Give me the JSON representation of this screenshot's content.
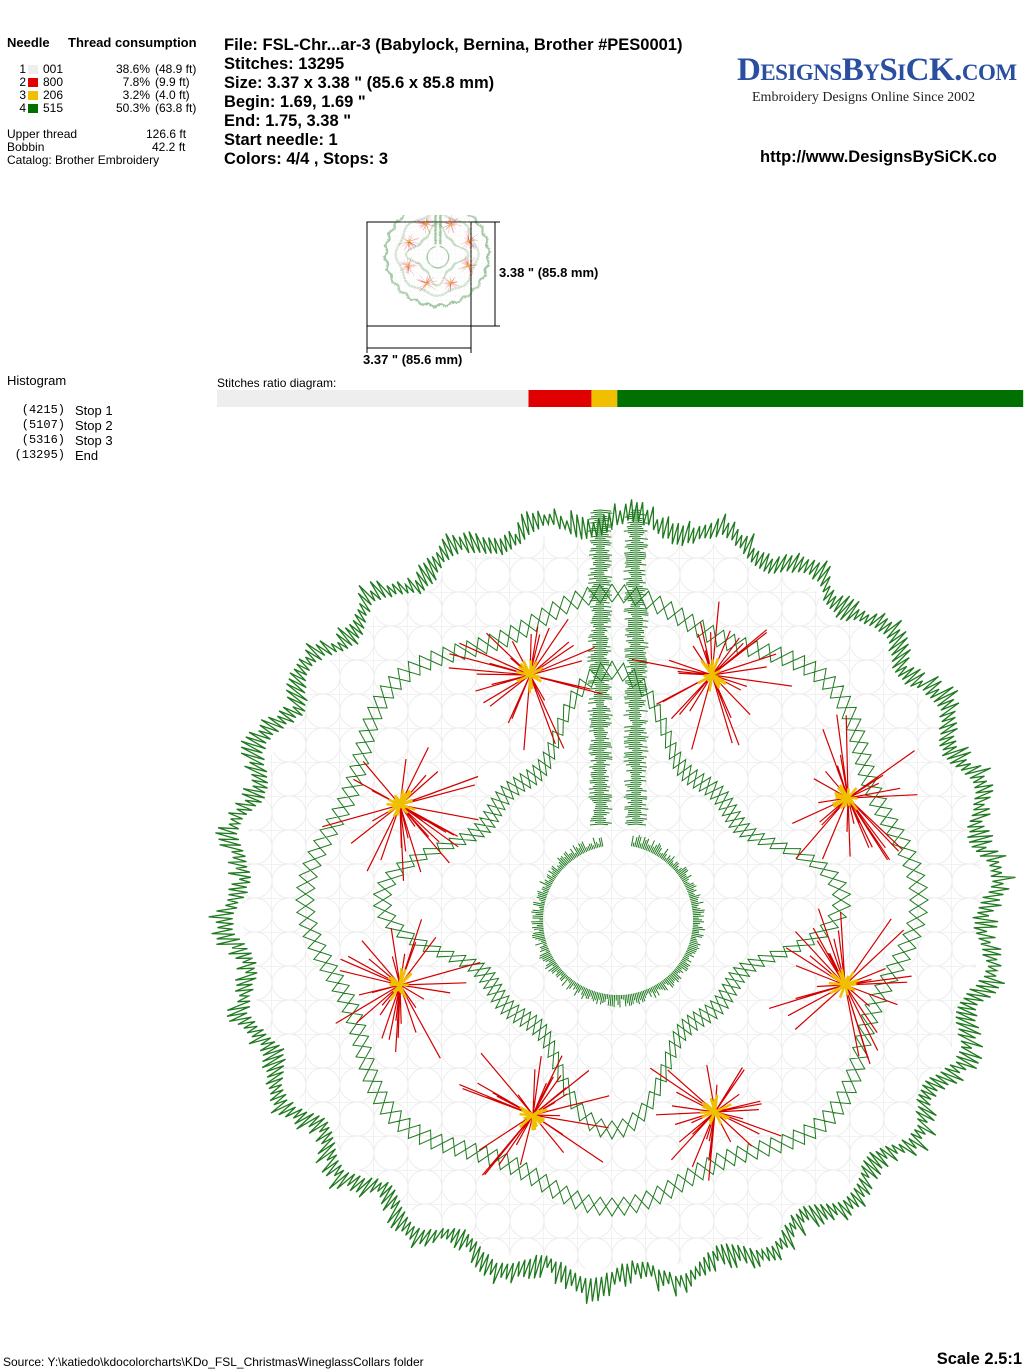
{
  "header": {
    "needle": "Needle",
    "thread_consumption": "Thread consumption"
  },
  "threads": [
    {
      "needle": "1",
      "color": "#eeeeee",
      "code": "001",
      "percent": {
        "value": 38.6,
        "label": "38.6%"
      },
      "length": "(48.9 ft)"
    },
    {
      "needle": "2",
      "color": "#e00000",
      "code": "800",
      "percent": {
        "value": 7.8,
        "label": "7.8%"
      },
      "length": "(9.9 ft)"
    },
    {
      "needle": "3",
      "color": "#f0c000",
      "code": "206",
      "percent": {
        "value": 3.2,
        "label": "3.2%"
      },
      "length": "(4.0 ft)"
    },
    {
      "needle": "4",
      "color": "#007000",
      "code": "515",
      "percent": {
        "value": 50.3,
        "label": "50.3%"
      },
      "length": "(63.8 ft)"
    }
  ],
  "totals": [
    {
      "label": "Upper thread",
      "value": "126.6 ft"
    },
    {
      "label": "Bobbin",
      "value": "42.2 ft"
    }
  ],
  "catalog": "Catalog: Brother Embroidery",
  "info": [
    "File: FSL-Chr...ar-3  (Babylock, Bernina, Brother #PES0001)",
    "Stitches: 13295",
    "Size: 3.37 x 3.38 \" (85.6 x 85.8 mm)",
    "Begin: 1.69, 1.69 \"",
    "End: 1.75, 3.38 \"",
    "Start needle: 1",
    "Colors: 4/4 , Stops: 3"
  ],
  "logo": {
    "name": "DesignsBySiCK.com",
    "tagline": "Embroidery Designs Online Since 2002"
  },
  "url": "http://www.DesignsBySiCK.co",
  "preview": {
    "height": "3.38 \" (85.8 mm)",
    "width": "3.37 \" (85.6 mm)"
  },
  "histogram": {
    "title": "Histogram",
    "entries": [
      {
        "count": "(4215)",
        "label": "Stop 1"
      },
      {
        "count": "(5107)",
        "label": "Stop 2"
      },
      {
        "count": "(5316)",
        "label": "Stop 3"
      },
      {
        "count": "(13295)",
        "label": "End"
      }
    ]
  },
  "ratio_title": "Stitches ratio diagram:",
  "footer": {
    "source": "Source: Y:\\katiedo\\kdocolorcharts\\KDo_FSL_ChristmasWineglassCollars folder",
    "scale": "Scale 2.5:1"
  }
}
